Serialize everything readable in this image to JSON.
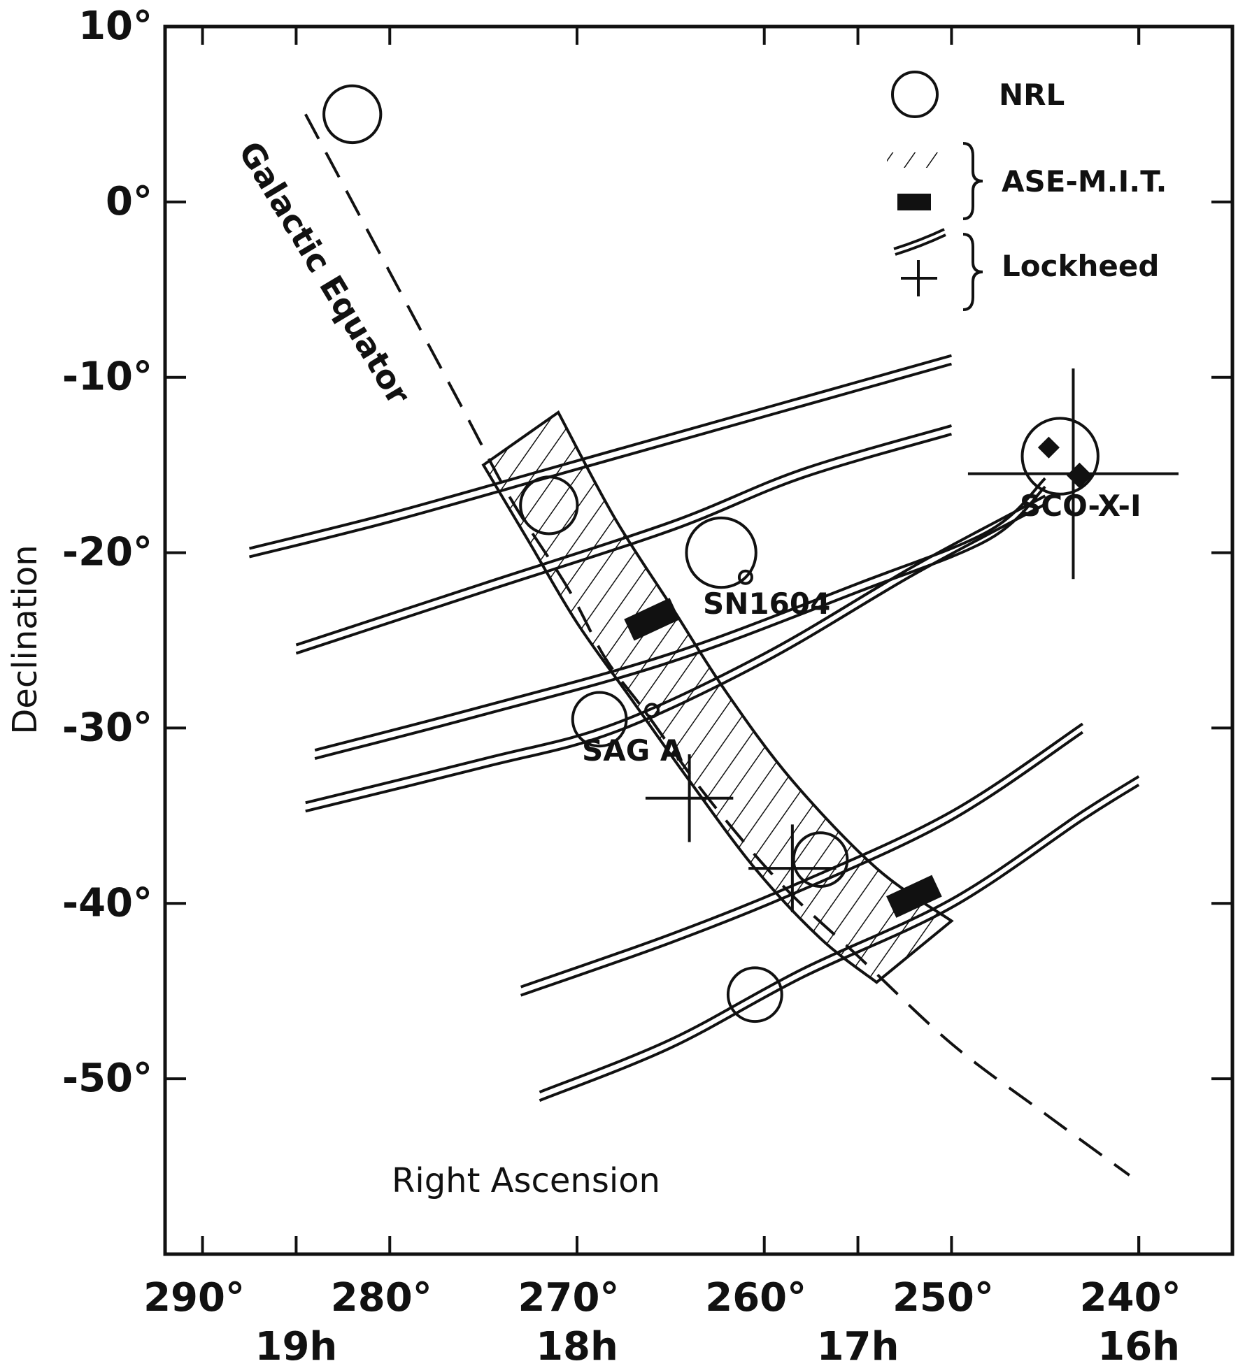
{
  "chart_data": {
    "type": "scatter",
    "xlabel": "Right Ascension",
    "ylabel": "Declination",
    "xlim": [
      292,
      235
    ],
    "ylim": [
      -60,
      10
    ],
    "x_ticks": [
      290,
      280,
      270,
      260,
      250,
      240
    ],
    "x_tick_labels": [
      "290°",
      "280°",
      "270°",
      "260°",
      "250°",
      "240°"
    ],
    "hour_ticks": [
      285,
      270,
      255,
      240
    ],
    "hour_labels": [
      "19h",
      "18h",
      "17h",
      "16h"
    ],
    "y_ticks": [
      10,
      0,
      -10,
      -20,
      -30,
      -40,
      -50
    ],
    "y_tick_labels": [
      "10°",
      "0°",
      "-10°",
      "-20°",
      "-30°",
      "-40°",
      "-50°"
    ],
    "legend": [
      {
        "label": "NRL",
        "symbol": "open-circle"
      },
      {
        "label": "ASE-M.I.T.",
        "symbol": "hatch-and-filled-box"
      },
      {
        "label": "Lockheed",
        "symbol": "double-line-and-cross"
      }
    ],
    "galactic_equator": {
      "label": "Galactic Equator",
      "points": [
        [
          284.5,
          5
        ],
        [
          282,
          0
        ],
        [
          279,
          -6
        ],
        [
          276,
          -12
        ],
        [
          273.5,
          -17
        ],
        [
          270.5,
          -22
        ],
        [
          268.5,
          -26
        ],
        [
          266.4,
          -29
        ],
        [
          263,
          -34
        ],
        [
          259,
          -39
        ],
        [
          255,
          -43
        ],
        [
          250,
          -48
        ],
        [
          245,
          -52
        ],
        [
          240.5,
          -55.5
        ]
      ]
    },
    "ase_mit_hatched_band": {
      "label": "ASE-M.I.T.",
      "upper_edge": [
        [
          271,
          -12
        ],
        [
          268,
          -18
        ],
        [
          265,
          -23
        ],
        [
          262,
          -28
        ],
        [
          258.5,
          -33
        ],
        [
          254,
          -38
        ],
        [
          250,
          -41
        ]
      ],
      "lower_edge": [
        [
          275,
          -15
        ],
        [
          272.5,
          -19.5
        ],
        [
          270,
          -24
        ],
        [
          267,
          -28.5
        ],
        [
          264,
          -33
        ],
        [
          260.5,
          -38
        ],
        [
          257,
          -42
        ],
        [
          254,
          -44.5
        ]
      ]
    },
    "ase_mit_boxes": [
      {
        "x": 266,
        "y": -23.8
      },
      {
        "x": 252,
        "y": -39.6
      }
    ],
    "lockheed_tracks": [
      [
        [
          287.5,
          -20
        ],
        [
          280,
          -18
        ],
        [
          270,
          -15
        ],
        [
          260,
          -12
        ],
        [
          255,
          -10.5
        ],
        [
          250,
          -9
        ]
      ],
      [
        [
          285,
          -25.5
        ],
        [
          275,
          -22
        ],
        [
          265,
          -18.5
        ],
        [
          258,
          -15.5
        ],
        [
          250,
          -13
        ]
      ],
      [
        [
          284,
          -31.5
        ],
        [
          275,
          -29
        ],
        [
          265,
          -26
        ],
        [
          255,
          -22
        ],
        [
          248,
          -19
        ],
        [
          245,
          -16
        ]
      ],
      [
        [
          284.5,
          -34.5
        ],
        [
          275,
          -32
        ],
        [
          268,
          -30
        ],
        [
          260,
          -26
        ],
        [
          252,
          -21
        ],
        [
          245,
          -17
        ]
      ],
      [
        [
          273,
          -45
        ],
        [
          265,
          -42
        ],
        [
          258,
          -39
        ],
        [
          250,
          -35
        ],
        [
          243,
          -30
        ]
      ],
      [
        [
          272,
          -51
        ],
        [
          265,
          -48
        ],
        [
          258,
          -44
        ],
        [
          250,
          -40
        ],
        [
          243,
          -35
        ],
        [
          240,
          -33
        ]
      ]
    ],
    "lockheed_crosses": [
      {
        "x": 264,
        "y": -34,
        "size": 2.5
      },
      {
        "x": 258.5,
        "y": -38,
        "size": 2.5
      },
      {
        "x": 243.5,
        "y": -15.5,
        "size": 6
      }
    ],
    "nrl_sources": [
      {
        "x": 282,
        "y": 5,
        "r": 1.8
      },
      {
        "x": 271.5,
        "y": -17.3,
        "r": 1.8
      },
      {
        "x": 262.3,
        "y": -20,
        "r": 2.2
      },
      {
        "x": 268.8,
        "y": -29.5,
        "r": 1.7
      },
      {
        "x": 257,
        "y": -37.5,
        "r": 1.7
      },
      {
        "x": 260.5,
        "y": -45.2,
        "r": 1.7
      },
      {
        "x": 244.2,
        "y": -14.5,
        "r": 2.4
      }
    ],
    "named_sources": [
      {
        "label": "SN1604",
        "x": 261.0,
        "y": -21.4
      },
      {
        "label": "SAG A",
        "x": 266.0,
        "y": -29.0
      },
      {
        "label": "SCO-X-1",
        "x": 243.8,
        "y": -15.0
      }
    ]
  },
  "labels": {
    "galactic_equator": "Galactic Equator",
    "sn1604": "SN1604",
    "sag_a": "SAG A",
    "sco_x1": "SCO-X-I",
    "legend_nrl": "NRL",
    "legend_ase": "ASE-M.I.T.",
    "legend_lockheed": "Lockheed",
    "xlabel": "Right Ascension",
    "ylabel": "Declination"
  }
}
